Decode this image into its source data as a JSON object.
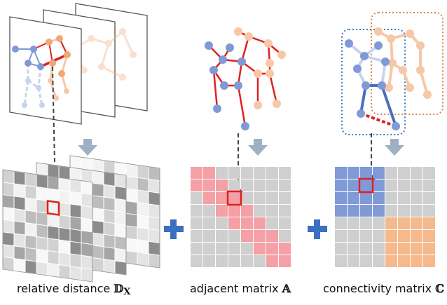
{
  "captions": {
    "relative_distance": {
      "text": "relative distance",
      "symbol": "𝔻",
      "subscript": "X"
    },
    "adjacent_matrix": {
      "text": "adjacent matrix",
      "symbol": "𝔸"
    },
    "connectivity_matrix": {
      "text": "connectivity matrix",
      "symbol": "ℂ"
    }
  },
  "colors": {
    "blue_skeleton": "#7f9ad6",
    "orange_skeleton": "#f0a877",
    "highlight_red": "#e02020",
    "adjacent_pink": "#f4a0a6",
    "connectivity_blue": "#7f9ad6",
    "connectivity_orange": "#f5b98c",
    "grid_gray": "#cfcfcf",
    "arrow_gray": "#9fb0c4",
    "plus_blue": "#3b6fc2"
  },
  "icons": [
    "down-arrow-icon",
    "plus-icon",
    "dashed-pointer-arrow-icon"
  ]
}
